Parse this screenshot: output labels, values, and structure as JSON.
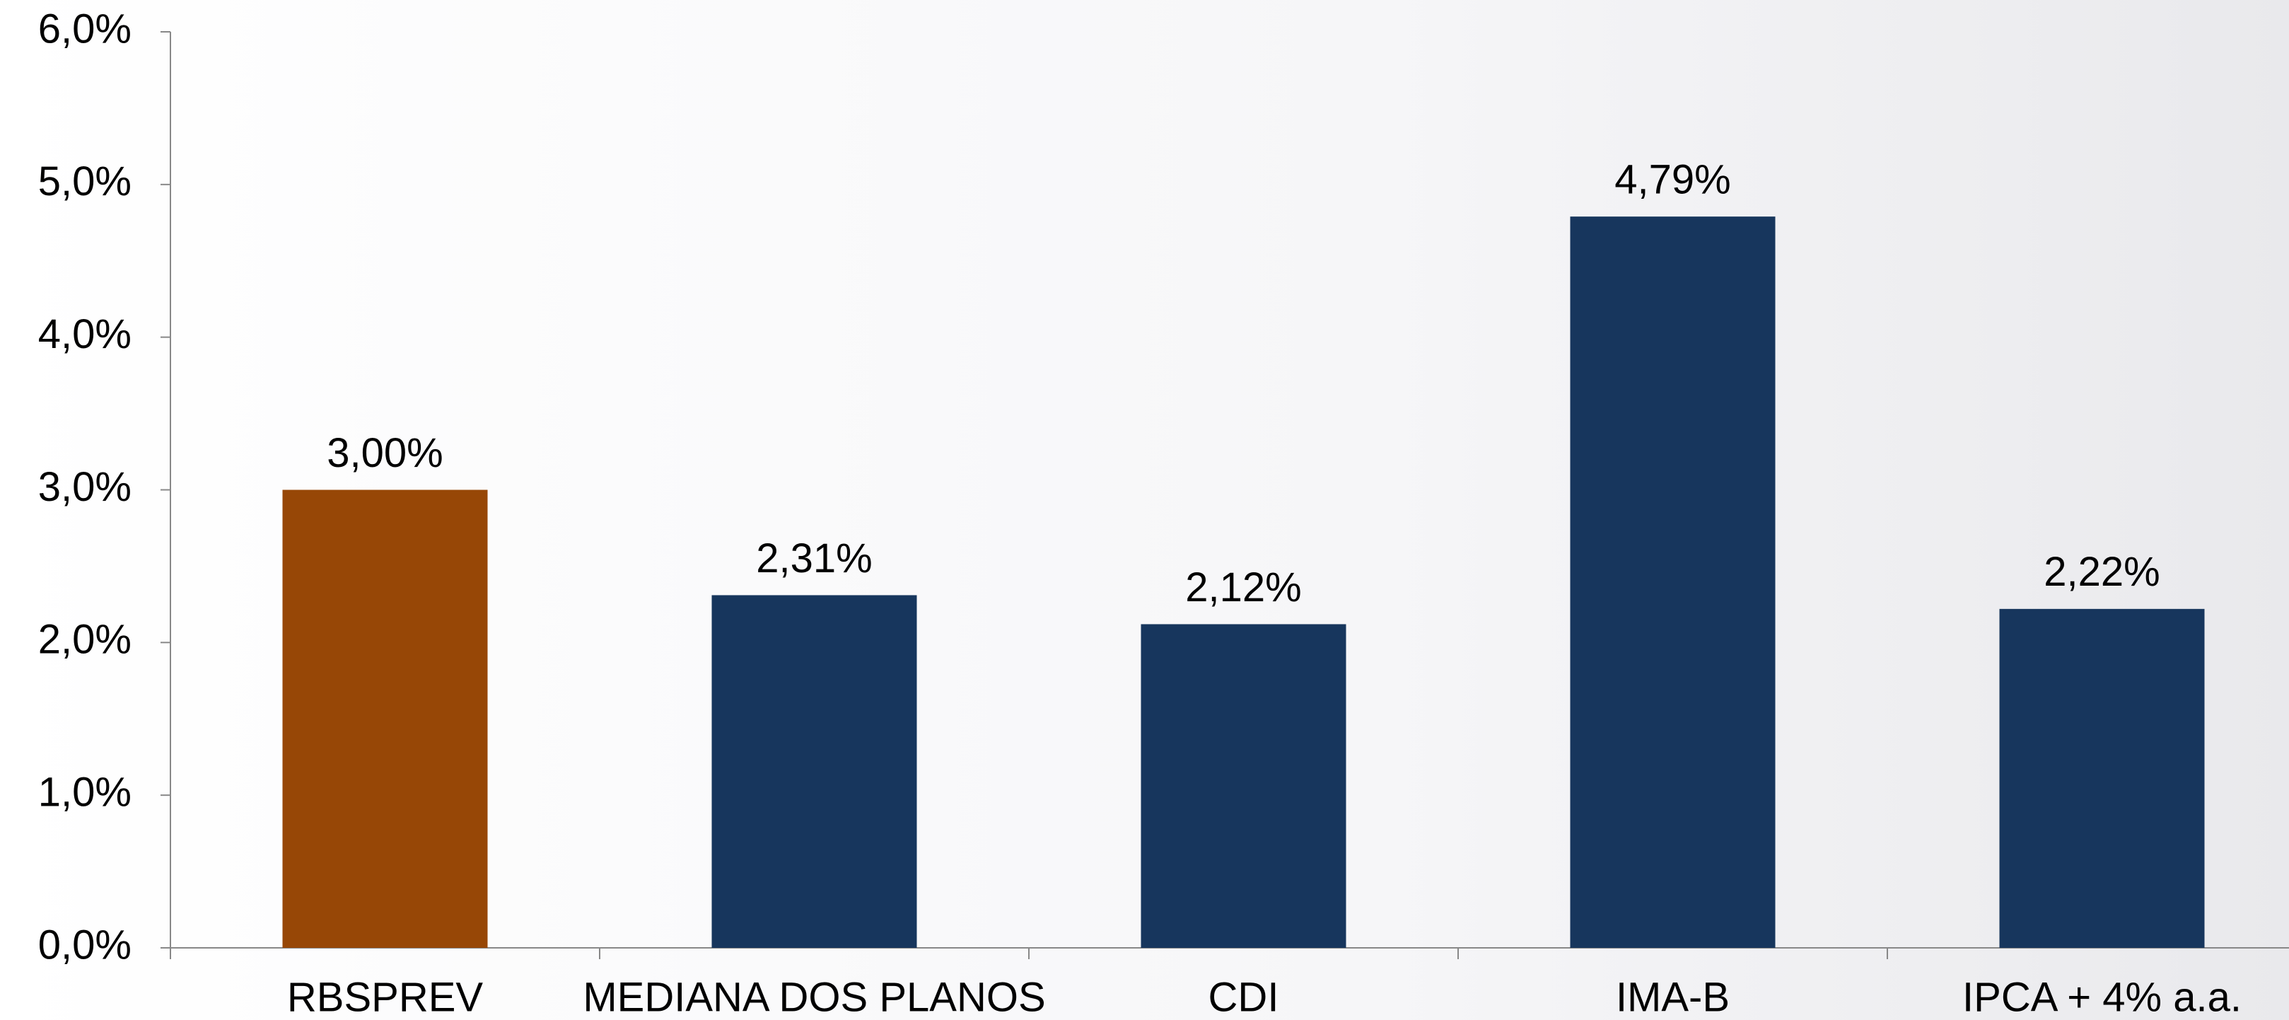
{
  "chart_data": {
    "type": "bar",
    "categories": [
      "RBSPREV",
      "MEDIANA DOS PLANOS",
      "CDI",
      "IMA-B",
      "IPCA + 4% a.a."
    ],
    "values": [
      3.0,
      2.31,
      2.12,
      4.79,
      2.22
    ],
    "value_labels": [
      "3,00%",
      "2,31%",
      "2,12%",
      "4,79%",
      "2,22%"
    ],
    "colors": [
      "#974706",
      "#17365d",
      "#17365d",
      "#17365d",
      "#17365d"
    ],
    "ylim": [
      0,
      6
    ],
    "yticks": [
      {
        "value": 0,
        "label": "0,0%"
      },
      {
        "value": 1,
        "label": "1,0%"
      },
      {
        "value": 2,
        "label": "2,0%"
      },
      {
        "value": 3,
        "label": "3,0%"
      },
      {
        "value": 4,
        "label": "4,0%"
      },
      {
        "value": 5,
        "label": "5,0%"
      },
      {
        "value": 6,
        "label": "6,0%"
      }
    ],
    "grid": false
  }
}
